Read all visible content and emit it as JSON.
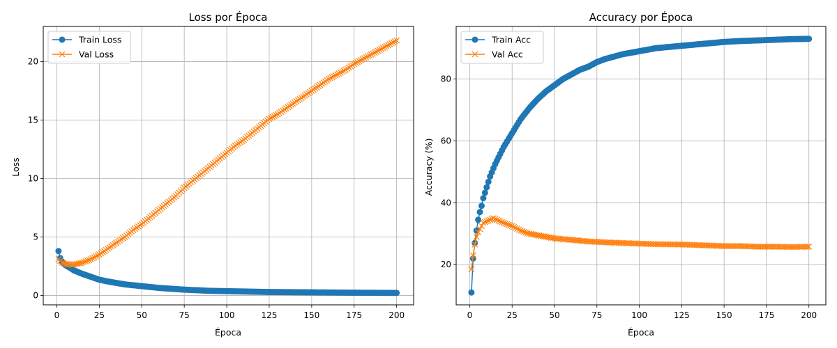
{
  "chart_data": [
    {
      "type": "line",
      "title": "Loss por Época",
      "xlabel": "Época",
      "ylabel": "Loss",
      "xlim": [
        -8,
        210
      ],
      "ylim": [
        -0.8,
        23
      ],
      "xticks": [
        0,
        25,
        50,
        75,
        100,
        125,
        150,
        175,
        200
      ],
      "yticks": [
        0,
        5,
        10,
        15,
        20
      ],
      "grid": true,
      "legend": "top-left",
      "series": [
        {
          "name": "Train Loss",
          "color": "#1f77b4",
          "marker": "circle",
          "points": [
            [
              1,
              3.8
            ],
            [
              2,
              3.2
            ],
            [
              3,
              2.9
            ],
            [
              5,
              2.6
            ],
            [
              8,
              2.35
            ],
            [
              10,
              2.15
            ],
            [
              15,
              1.85
            ],
            [
              20,
              1.6
            ],
            [
              25,
              1.35
            ],
            [
              30,
              1.2
            ],
            [
              40,
              0.95
            ],
            [
              50,
              0.8
            ],
            [
              60,
              0.65
            ],
            [
              75,
              0.5
            ],
            [
              90,
              0.4
            ],
            [
              100,
              0.37
            ],
            [
              125,
              0.3
            ],
            [
              150,
              0.27
            ],
            [
              175,
              0.24
            ],
            [
              200,
              0.22
            ]
          ]
        },
        {
          "name": "Val Loss",
          "color": "#ff7f0e",
          "marker": "x",
          "points": [
            [
              1,
              3.1
            ],
            [
              3,
              2.8
            ],
            [
              5,
              2.7
            ],
            [
              8,
              2.65
            ],
            [
              10,
              2.65
            ],
            [
              15,
              2.8
            ],
            [
              20,
              3.1
            ],
            [
              25,
              3.5
            ],
            [
              30,
              4.0
            ],
            [
              35,
              4.5
            ],
            [
              40,
              5.0
            ],
            [
              45,
              5.6
            ],
            [
              50,
              6.1
            ],
            [
              55,
              6.7
            ],
            [
              60,
              7.3
            ],
            [
              65,
              7.9
            ],
            [
              70,
              8.5
            ],
            [
              75,
              9.2
            ],
            [
              80,
              9.8
            ],
            [
              85,
              10.4
            ],
            [
              90,
              11.0
            ],
            [
              95,
              11.6
            ],
            [
              100,
              12.2
            ],
            [
              105,
              12.8
            ],
            [
              110,
              13.3
            ],
            [
              115,
              13.9
            ],
            [
              120,
              14.5
            ],
            [
              125,
              15.1
            ],
            [
              130,
              15.5
            ],
            [
              135,
              16.0
            ],
            [
              140,
              16.5
            ],
            [
              145,
              17.0
            ],
            [
              150,
              17.5
            ],
            [
              155,
              18.0
            ],
            [
              160,
              18.5
            ],
            [
              165,
              18.9
            ],
            [
              170,
              19.3
            ],
            [
              175,
              19.8
            ],
            [
              180,
              20.2
            ],
            [
              185,
              20.6
            ],
            [
              190,
              21.0
            ],
            [
              195,
              21.4
            ],
            [
              200,
              21.8
            ]
          ]
        }
      ]
    },
    {
      "type": "line",
      "title": "Accuracy por Época",
      "xlabel": "Época",
      "ylabel": "Accuracy (%)",
      "xlim": [
        -8,
        210
      ],
      "ylim": [
        7,
        97
      ],
      "xticks": [
        0,
        25,
        50,
        75,
        100,
        125,
        150,
        175,
        200
      ],
      "yticks": [
        20,
        40,
        60,
        80
      ],
      "grid": true,
      "legend": "top-left",
      "series": [
        {
          "name": "Train Acc",
          "color": "#1f77b4",
          "marker": "circle",
          "points": [
            [
              1,
              11
            ],
            [
              2,
              22
            ],
            [
              3,
              27
            ],
            [
              4,
              31
            ],
            [
              5,
              34.5
            ],
            [
              6,
              37
            ],
            [
              7,
              39
            ],
            [
              8,
              41.5
            ],
            [
              10,
              45
            ],
            [
              12,
              48.5
            ],
            [
              15,
              52.5
            ],
            [
              20,
              58
            ],
            [
              25,
              62.5
            ],
            [
              30,
              67
            ],
            [
              35,
              70.5
            ],
            [
              40,
              73.5
            ],
            [
              45,
              76
            ],
            [
              50,
              78
            ],
            [
              55,
              80
            ],
            [
              60,
              81.5
            ],
            [
              65,
              83
            ],
            [
              70,
              84
            ],
            [
              75,
              85.5
            ],
            [
              80,
              86.5
            ],
            [
              90,
              88
            ],
            [
              100,
              89
            ],
            [
              110,
              90
            ],
            [
              120,
              90.5
            ],
            [
              130,
              91
            ],
            [
              140,
              91.5
            ],
            [
              150,
              92
            ],
            [
              160,
              92.3
            ],
            [
              170,
              92.5
            ],
            [
              180,
              92.7
            ],
            [
              190,
              92.9
            ],
            [
              200,
              93
            ]
          ]
        },
        {
          "name": "Val Acc",
          "color": "#ff7f0e",
          "marker": "x",
          "points": [
            [
              1,
              18.5
            ],
            [
              2,
              23
            ],
            [
              3,
              26.5
            ],
            [
              4,
              29
            ],
            [
              5,
              30.5
            ],
            [
              6,
              31.5
            ],
            [
              7,
              32.5
            ],
            [
              8,
              33.5
            ],
            [
              10,
              34
            ],
            [
              12,
              34.5
            ],
            [
              14,
              35
            ],
            [
              16,
              34.5
            ],
            [
              20,
              33.5
            ],
            [
              25,
              32.5
            ],
            [
              30,
              31
            ],
            [
              35,
              30
            ],
            [
              40,
              29.5
            ],
            [
              45,
              29
            ],
            [
              50,
              28.5
            ],
            [
              60,
              28
            ],
            [
              70,
              27.5
            ],
            [
              80,
              27.2
            ],
            [
              90,
              27
            ],
            [
              100,
              26.8
            ],
            [
              110,
              26.6
            ],
            [
              125,
              26.5
            ],
            [
              140,
              26.2
            ],
            [
              150,
              26
            ],
            [
              160,
              26
            ],
            [
              170,
              25.8
            ],
            [
              180,
              25.8
            ],
            [
              190,
              25.7
            ],
            [
              200,
              25.8
            ]
          ]
        }
      ]
    }
  ]
}
